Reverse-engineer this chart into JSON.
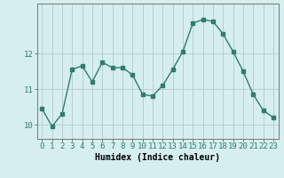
{
  "x": [
    0,
    1,
    2,
    3,
    4,
    5,
    6,
    7,
    8,
    9,
    10,
    11,
    12,
    13,
    14,
    15,
    16,
    17,
    18,
    19,
    20,
    21,
    22,
    23
  ],
  "y": [
    10.45,
    9.95,
    10.3,
    11.55,
    11.65,
    11.2,
    11.75,
    11.6,
    11.6,
    11.4,
    10.85,
    10.8,
    11.1,
    11.55,
    12.05,
    12.85,
    12.95,
    12.9,
    12.55,
    12.05,
    11.5,
    10.85,
    10.4,
    10.2
  ],
  "line_color": "#2e7d6e",
  "marker": "s",
  "marker_size": 2.5,
  "bg_color": "#d6eeee",
  "grid_color": "#b8d0d0",
  "xlabel": "Humidex (Indice chaleur)",
  "ylim": [
    9.6,
    13.4
  ],
  "yticks": [
    10,
    11,
    12
  ],
  "xlabel_fontsize": 7,
  "tick_fontsize": 6.5
}
